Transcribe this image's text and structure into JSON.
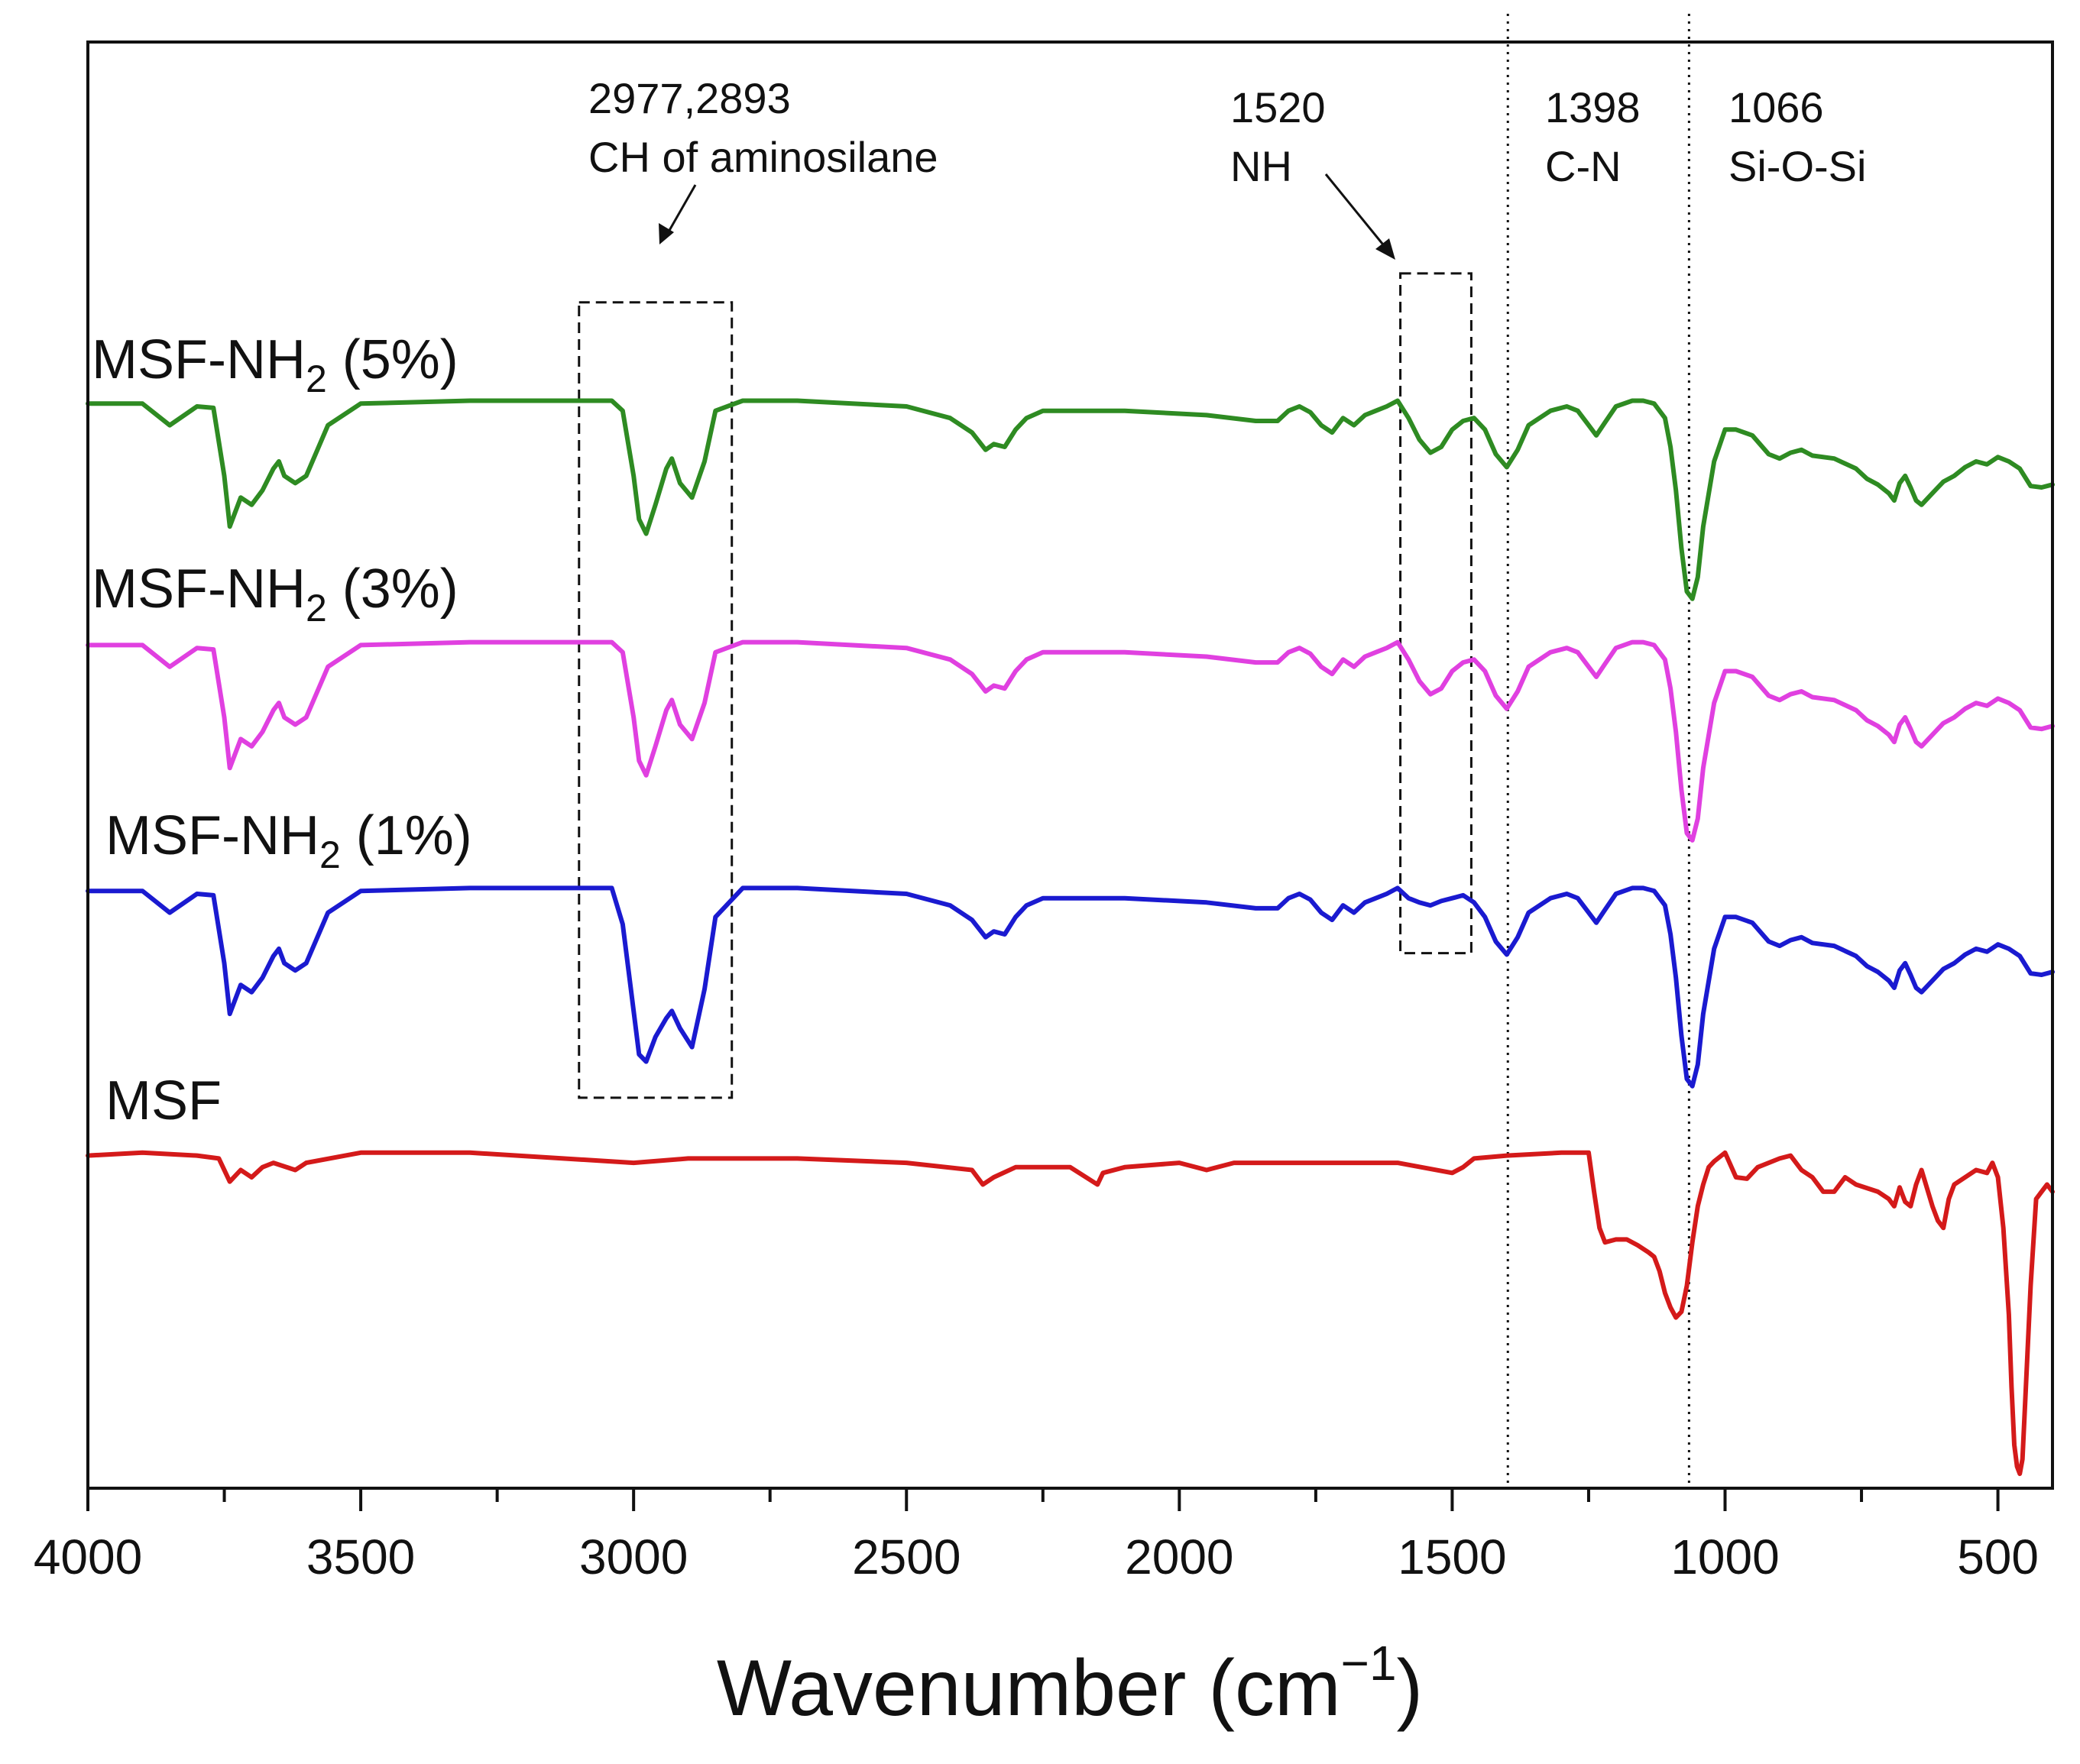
{
  "chart_data": {
    "type": "line",
    "title": "",
    "xlabel": "Wavenumber (cm",
    "xlabel_sup": "−1",
    "xlabel_close": ")",
    "ylabel": "",
    "xlim": [
      4000,
      400
    ],
    "x_reversed": true,
    "ylim": [
      0,
      1
    ],
    "y_ticks_shown": false,
    "x_ticks": [
      4000,
      3500,
      3000,
      2500,
      2000,
      1500,
      1000,
      500
    ],
    "x_tick_labels": [
      "4000",
      "3500",
      "3000",
      "2500",
      "2000",
      "1500",
      "1000",
      "500"
    ],
    "grid": false,
    "legend": "inline labels",
    "series": [
      {
        "name": "MSF-NH2 (5%)",
        "label_main": "MSF-NH",
        "label_sub": "2",
        "label_tail": " (5%)",
        "color": "#2e8b22",
        "x": [
          4000,
          3900,
          3850,
          3800,
          3770,
          3750,
          3740,
          3720,
          3700,
          3680,
          3660,
          3650,
          3640,
          3620,
          3600,
          3560,
          3500,
          3300,
          3100,
          3040,
          3020,
          3000,
          2990,
          2977,
          2960,
          2940,
          2930,
          2915,
          2893,
          2870,
          2850,
          2800,
          2700,
          2500,
          2420,
          2380,
          2355,
          2340,
          2320,
          2300,
          2280,
          2250,
          2100,
          1950,
          1860,
          1820,
          1800,
          1780,
          1760,
          1740,
          1720,
          1700,
          1680,
          1660,
          1640,
          1620,
          1600,
          1580,
          1560,
          1540,
          1520,
          1500,
          1480,
          1460,
          1440,
          1420,
          1400,
          1380,
          1360,
          1320,
          1290,
          1270,
          1250,
          1236,
          1220,
          1200,
          1170,
          1150,
          1130,
          1110,
          1100,
          1090,
          1080,
          1070,
          1060,
          1050,
          1040,
          1020,
          1000,
          980,
          950,
          920,
          900,
          880,
          860,
          840,
          800,
          760,
          740,
          720,
          700,
          690,
          680,
          670,
          660,
          650,
          640,
          620,
          600,
          580,
          560,
          540,
          520,
          500,
          480,
          460,
          440,
          420,
          400
        ],
        "y": [
          0.75,
          0.75,
          0.735,
          0.748,
          0.747,
          0.7,
          0.665,
          0.685,
          0.68,
          0.69,
          0.705,
          0.71,
          0.7,
          0.695,
          0.7,
          0.735,
          0.75,
          0.752,
          0.752,
          0.752,
          0.745,
          0.7,
          0.67,
          0.66,
          0.68,
          0.705,
          0.712,
          0.695,
          0.685,
          0.71,
          0.745,
          0.752,
          0.752,
          0.748,
          0.74,
          0.73,
          0.718,
          0.722,
          0.72,
          0.732,
          0.74,
          0.745,
          0.745,
          0.742,
          0.738,
          0.738,
          0.745,
          0.748,
          0.744,
          0.735,
          0.73,
          0.74,
          0.735,
          0.742,
          0.745,
          0.748,
          0.752,
          0.74,
          0.725,
          0.716,
          0.72,
          0.732,
          0.738,
          0.74,
          0.732,
          0.715,
          0.706,
          0.718,
          0.735,
          0.745,
          0.748,
          0.745,
          0.735,
          0.728,
          0.737,
          0.748,
          0.752,
          0.752,
          0.75,
          0.74,
          0.72,
          0.69,
          0.65,
          0.62,
          0.615,
          0.63,
          0.665,
          0.71,
          0.732,
          0.732,
          0.728,
          0.715,
          0.712,
          0.716,
          0.718,
          0.714,
          0.712,
          0.705,
          0.698,
          0.694,
          0.688,
          0.683,
          0.695,
          0.7,
          0.692,
          0.683,
          0.68,
          0.688,
          0.696,
          0.7,
          0.706,
          0.71,
          0.708,
          0.713,
          0.71,
          0.705,
          0.693,
          0.692,
          0.694
        ]
      },
      {
        "name": "MSF-NH2 (3%)",
        "label_main": "MSF-NH",
        "label_sub": "2",
        "label_tail": " (3%)",
        "color": "#e040e0",
        "x": [
          4000,
          3900,
          3850,
          3800,
          3770,
          3750,
          3740,
          3720,
          3700,
          3680,
          3660,
          3650,
          3640,
          3620,
          3600,
          3560,
          3500,
          3300,
          3100,
          3040,
          3020,
          3000,
          2990,
          2977,
          2960,
          2940,
          2930,
          2915,
          2893,
          2870,
          2850,
          2800,
          2700,
          2500,
          2420,
          2380,
          2355,
          2340,
          2320,
          2300,
          2280,
          2250,
          2100,
          1950,
          1860,
          1820,
          1800,
          1780,
          1760,
          1740,
          1720,
          1700,
          1680,
          1660,
          1640,
          1620,
          1600,
          1580,
          1560,
          1540,
          1520,
          1500,
          1480,
          1460,
          1440,
          1420,
          1400,
          1380,
          1360,
          1320,
          1290,
          1270,
          1250,
          1236,
          1220,
          1200,
          1170,
          1150,
          1130,
          1110,
          1100,
          1090,
          1080,
          1070,
          1060,
          1050,
          1040,
          1020,
          1000,
          980,
          950,
          920,
          900,
          880,
          860,
          840,
          800,
          760,
          740,
          720,
          700,
          690,
          680,
          670,
          660,
          650,
          640,
          620,
          600,
          580,
          560,
          540,
          520,
          500,
          480,
          460,
          440,
          420,
          400
        ],
        "y": [
          0.583,
          0.583,
          0.568,
          0.581,
          0.58,
          0.533,
          0.498,
          0.518,
          0.513,
          0.523,
          0.538,
          0.543,
          0.533,
          0.528,
          0.533,
          0.568,
          0.583,
          0.585,
          0.585,
          0.585,
          0.578,
          0.533,
          0.503,
          0.493,
          0.513,
          0.538,
          0.545,
          0.528,
          0.518,
          0.543,
          0.578,
          0.585,
          0.585,
          0.581,
          0.573,
          0.563,
          0.551,
          0.555,
          0.553,
          0.565,
          0.573,
          0.578,
          0.578,
          0.575,
          0.571,
          0.571,
          0.578,
          0.581,
          0.577,
          0.568,
          0.563,
          0.573,
          0.568,
          0.575,
          0.578,
          0.581,
          0.585,
          0.573,
          0.558,
          0.549,
          0.553,
          0.565,
          0.571,
          0.573,
          0.565,
          0.548,
          0.539,
          0.551,
          0.568,
          0.578,
          0.581,
          0.578,
          0.568,
          0.561,
          0.57,
          0.581,
          0.585,
          0.585,
          0.583,
          0.573,
          0.553,
          0.523,
          0.483,
          0.453,
          0.448,
          0.463,
          0.498,
          0.543,
          0.565,
          0.565,
          0.561,
          0.548,
          0.545,
          0.549,
          0.551,
          0.547,
          0.545,
          0.538,
          0.531,
          0.527,
          0.521,
          0.516,
          0.528,
          0.533,
          0.525,
          0.516,
          0.513,
          0.521,
          0.529,
          0.533,
          0.539,
          0.543,
          0.541,
          0.546,
          0.543,
          0.538,
          0.526,
          0.525,
          0.527
        ]
      },
      {
        "name": "MSF-NH2 (1%)",
        "label_main": "MSF-NH",
        "label_sub": "2",
        "label_tail": " (1%)",
        "color": "#1a1ad0",
        "x": [
          4000,
          3900,
          3850,
          3800,
          3770,
          3750,
          3740,
          3720,
          3700,
          3680,
          3660,
          3650,
          3640,
          3620,
          3600,
          3560,
          3500,
          3300,
          3100,
          3040,
          3020,
          3000,
          2990,
          2977,
          2960,
          2940,
          2930,
          2915,
          2893,
          2870,
          2850,
          2800,
          2700,
          2500,
          2420,
          2380,
          2355,
          2340,
          2320,
          2300,
          2280,
          2250,
          2100,
          1950,
          1860,
          1820,
          1800,
          1780,
          1760,
          1740,
          1720,
          1700,
          1680,
          1660,
          1640,
          1620,
          1600,
          1580,
          1560,
          1540,
          1520,
          1500,
          1480,
          1460,
          1440,
          1420,
          1400,
          1380,
          1360,
          1320,
          1290,
          1270,
          1250,
          1236,
          1220,
          1200,
          1170,
          1150,
          1130,
          1110,
          1100,
          1090,
          1080,
          1070,
          1060,
          1050,
          1040,
          1020,
          1000,
          980,
          950,
          920,
          900,
          880,
          860,
          840,
          800,
          760,
          740,
          720,
          700,
          690,
          680,
          670,
          660,
          650,
          640,
          620,
          600,
          580,
          560,
          540,
          520,
          500,
          480,
          460,
          440,
          420,
          400
        ],
        "y": [
          0.413,
          0.413,
          0.398,
          0.411,
          0.41,
          0.363,
          0.328,
          0.348,
          0.343,
          0.353,
          0.368,
          0.373,
          0.363,
          0.358,
          0.363,
          0.398,
          0.413,
          0.415,
          0.415,
          0.415,
          0.39,
          0.33,
          0.3,
          0.295,
          0.312,
          0.325,
          0.33,
          0.318,
          0.305,
          0.345,
          0.395,
          0.415,
          0.415,
          0.411,
          0.403,
          0.393,
          0.381,
          0.385,
          0.383,
          0.395,
          0.403,
          0.408,
          0.408,
          0.405,
          0.401,
          0.401,
          0.408,
          0.411,
          0.407,
          0.398,
          0.393,
          0.403,
          0.398,
          0.405,
          0.408,
          0.411,
          0.415,
          0.408,
          0.405,
          0.403,
          0.406,
          0.408,
          0.41,
          0.405,
          0.395,
          0.378,
          0.369,
          0.381,
          0.398,
          0.408,
          0.411,
          0.408,
          0.398,
          0.391,
          0.4,
          0.411,
          0.415,
          0.415,
          0.413,
          0.403,
          0.383,
          0.353,
          0.313,
          0.283,
          0.278,
          0.293,
          0.328,
          0.373,
          0.395,
          0.395,
          0.391,
          0.378,
          0.375,
          0.379,
          0.381,
          0.377,
          0.375,
          0.368,
          0.361,
          0.357,
          0.351,
          0.346,
          0.358,
          0.363,
          0.355,
          0.346,
          0.343,
          0.351,
          0.359,
          0.363,
          0.369,
          0.373,
          0.371,
          0.376,
          0.373,
          0.368,
          0.356,
          0.355,
          0.357
        ]
      },
      {
        "name": "MSF",
        "label_main": "MSF",
        "label_sub": "",
        "label_tail": "",
        "color": "#d41a1a",
        "x": [
          4000,
          3900,
          3800,
          3760,
          3740,
          3720,
          3700,
          3680,
          3660,
          3620,
          3600,
          3500,
          3300,
          3000,
          2900,
          2700,
          2500,
          2380,
          2360,
          2340,
          2300,
          2200,
          2150,
          2140,
          2100,
          2000,
          1950,
          1900,
          1800,
          1600,
          1500,
          1480,
          1460,
          1400,
          1300,
          1250,
          1240,
          1230,
          1220,
          1200,
          1180,
          1160,
          1140,
          1130,
          1120,
          1110,
          1100,
          1090,
          1080,
          1070,
          1060,
          1050,
          1040,
          1030,
          1020,
          1000,
          980,
          960,
          940,
          900,
          880,
          860,
          840,
          820,
          800,
          780,
          760,
          720,
          700,
          690,
          680,
          670,
          660,
          650,
          640,
          620,
          610,
          600,
          590,
          580,
          560,
          540,
          520,
          510,
          500,
          490,
          480,
          475,
          470,
          465,
          460,
          455,
          450,
          440,
          430,
          420,
          410,
          400
        ],
        "y": [
          0.23,
          0.232,
          0.23,
          0.228,
          0.212,
          0.22,
          0.215,
          0.222,
          0.225,
          0.22,
          0.225,
          0.232,
          0.232,
          0.225,
          0.228,
          0.228,
          0.225,
          0.22,
          0.21,
          0.215,
          0.222,
          0.222,
          0.21,
          0.218,
          0.222,
          0.225,
          0.22,
          0.225,
          0.225,
          0.225,
          0.218,
          0.222,
          0.228,
          0.23,
          0.232,
          0.232,
          0.205,
          0.18,
          0.17,
          0.172,
          0.172,
          0.168,
          0.163,
          0.16,
          0.15,
          0.135,
          0.125,
          0.118,
          0.122,
          0.14,
          0.17,
          0.195,
          0.21,
          0.222,
          0.226,
          0.232,
          0.215,
          0.214,
          0.222,
          0.228,
          0.23,
          0.22,
          0.215,
          0.205,
          0.205,
          0.215,
          0.21,
          0.205,
          0.2,
          0.195,
          0.208,
          0.198,
          0.195,
          0.21,
          0.22,
          0.195,
          0.185,
          0.18,
          0.2,
          0.21,
          0.215,
          0.22,
          0.218,
          0.225,
          0.215,
          0.18,
          0.12,
          0.07,
          0.03,
          0.015,
          0.01,
          0.02,
          0.06,
          0.14,
          0.2,
          0.205,
          0.21,
          0.205
        ]
      }
    ],
    "annotations": [
      {
        "line1": "2977,2893",
        "line2": "CH of aminosilane",
        "x_from": 3100,
        "x_to": 2820,
        "y_from": 0.27,
        "y_to": 0.82
      },
      {
        "line1": "1520",
        "line2": "NH",
        "x_from": 1595,
        "x_to": 1465,
        "y_from": 0.37,
        "y_to": 0.84
      },
      {
        "line1": "1398",
        "line2": "C-N",
        "vline_x": 1398
      },
      {
        "line1": "1066",
        "line2": "Si-O-Si",
        "vline_x": 1066
      }
    ]
  }
}
